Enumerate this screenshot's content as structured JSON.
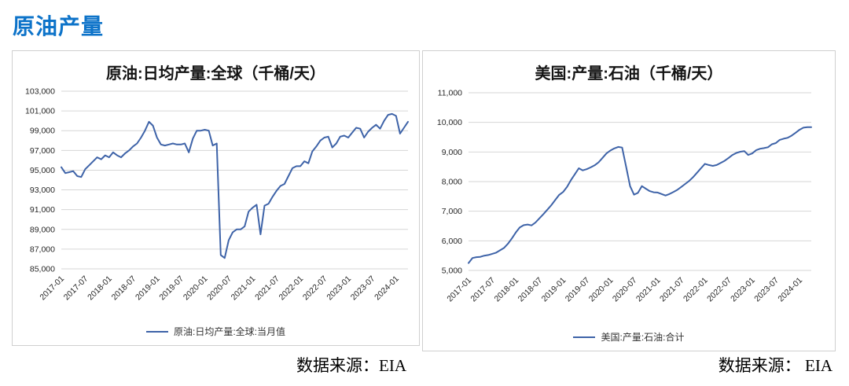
{
  "page": {
    "title": "原油产量",
    "title_color": "#0d73c9",
    "source_left": "数据来源：EIA",
    "source_right": "数据来源： EIA"
  },
  "chart_data": [
    {
      "type": "line",
      "title": "原油:日均产量:全球（千桶/天）",
      "legend": [
        "原油:日均产量:全球:当月值"
      ],
      "legend_position": "bottom",
      "line_color": "#3e63a8",
      "grid_color": "#d6d6d6",
      "x_unit": "month",
      "x_range": [
        "2017-01",
        "2024-04"
      ],
      "x_ticks": [
        "2017-01",
        "2017-07",
        "2018-01",
        "2018-07",
        "2019-01",
        "2019-07",
        "2020-01",
        "2020-07",
        "2021-01",
        "2021-07",
        "2022-01",
        "2022-07",
        "2023-01",
        "2023-07",
        "2024-01"
      ],
      "x_tick_every": 6,
      "ylim": [
        85000,
        103000
      ],
      "y_step": 2000,
      "y_ticks": [
        "85,000",
        "87,000",
        "89,000",
        "91,000",
        "93,000",
        "95,000",
        "97,000",
        "99,000",
        "101,000",
        "103,000"
      ],
      "values": [
        95300,
        94700,
        94800,
        94900,
        94400,
        94300,
        95100,
        95500,
        95900,
        96300,
        96100,
        96500,
        96300,
        96800,
        96500,
        96300,
        96700,
        97000,
        97400,
        97700,
        98300,
        99000,
        99900,
        99500,
        98300,
        97600,
        97500,
        97600,
        97700,
        97600,
        97600,
        97700,
        96800,
        98200,
        99000,
        99000,
        99100,
        99000,
        97500,
        97700,
        86400,
        86100,
        87900,
        88700,
        89000,
        89000,
        89300,
        90800,
        91200,
        91500,
        88500,
        91400,
        91600,
        92300,
        92900,
        93400,
        93600,
        94400,
        95200,
        95400,
        95400,
        95900,
        95700,
        96900,
        97400,
        98000,
        98300,
        98400,
        97300,
        97700,
        98400,
        98500,
        98300,
        98800,
        99300,
        99200,
        98300,
        98900,
        99300,
        99600,
        99200,
        100000,
        100600,
        100700,
        100500,
        98700,
        99300,
        99900
      ]
    },
    {
      "type": "line",
      "title": "美国:产量:石油（千桶/天）",
      "legend": [
        "美国:产量:石油:合计"
      ],
      "legend_position": "bottom",
      "line_color": "#3e63a8",
      "grid_color": "#d6d6d6",
      "x_unit": "month",
      "x_range": [
        "2017-01",
        "2024-04"
      ],
      "x_ticks": [
        "2017-01",
        "2017-07",
        "2018-01",
        "2018-07",
        "2019-01",
        "2019-07",
        "2020-01",
        "2020-07",
        "2021-01",
        "2021-07",
        "2022-01",
        "2022-07",
        "2023-01",
        "2023-07",
        "2024-01"
      ],
      "x_tick_every": 6,
      "ylim": [
        5000,
        11000
      ],
      "y_step": 1000,
      "y_ticks": [
        "5,000",
        "6,000",
        "7,000",
        "8,000",
        "9,000",
        "10,000",
        "11,000"
      ],
      "values": [
        5250,
        5420,
        5450,
        5460,
        5500,
        5520,
        5560,
        5600,
        5680,
        5760,
        5900,
        6080,
        6280,
        6450,
        6530,
        6550,
        6520,
        6620,
        6760,
        6900,
        7050,
        7200,
        7380,
        7550,
        7650,
        7820,
        8050,
        8250,
        8450,
        8380,
        8420,
        8480,
        8550,
        8650,
        8800,
        8950,
        9050,
        9120,
        9170,
        9150,
        8500,
        7850,
        7560,
        7620,
        7850,
        7760,
        7680,
        7640,
        7630,
        7580,
        7530,
        7580,
        7650,
        7720,
        7820,
        7920,
        8020,
        8150,
        8300,
        8450,
        8600,
        8560,
        8530,
        8560,
        8630,
        8700,
        8800,
        8900,
        8970,
        9010,
        9030,
        8900,
        8950,
        9060,
        9110,
        9130,
        9160,
        9260,
        9300,
        9410,
        9450,
        9480,
        9550,
        9650,
        9750,
        9820,
        9840,
        9840
      ]
    }
  ]
}
